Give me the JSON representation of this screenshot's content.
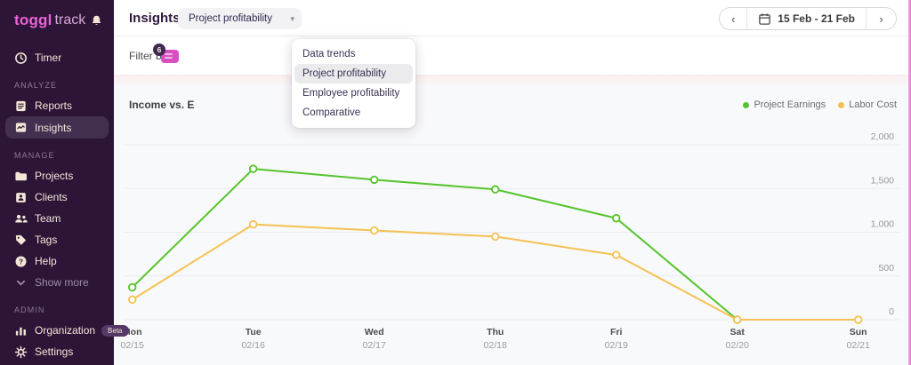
{
  "colors": {
    "sidebar_bg": "#2c1537",
    "selected_item_bg": "#433051",
    "brand_pink": "#e964d3",
    "cream": "#f3e6d6",
    "earnings_green": "#56c42c",
    "labor_yellow": "#f5c152",
    "grid_line": "#e9ebee",
    "edge_pink": "#e678d3"
  },
  "sidebar": {
    "logo": {
      "bold": "toggl",
      "light": "track"
    },
    "sections": [
      {
        "header": "",
        "items": [
          {
            "label": "Timer"
          }
        ]
      },
      {
        "header": "ANALYZE",
        "items": [
          {
            "label": "Reports"
          },
          {
            "label": "Insights"
          }
        ]
      },
      {
        "header": "MANAGE",
        "items": [
          {
            "label": "Projects"
          },
          {
            "label": "Clients"
          },
          {
            "label": "Team"
          },
          {
            "label": "Tags"
          },
          {
            "label": "Help"
          },
          {
            "label": "Show more"
          }
        ]
      },
      {
        "header": "ADMIN",
        "items": [
          {
            "label": "Organization",
            "badge": "Beta"
          },
          {
            "label": "Settings"
          }
        ]
      }
    ]
  },
  "topbar": {
    "title": "Insights",
    "view_selector": {
      "value": "Project profitability"
    },
    "date_range": {
      "prev": "‹",
      "label": "15 Feb - 21 Feb",
      "next": "›"
    }
  },
  "filter": {
    "label": "Filter by:",
    "badge_count": "6"
  },
  "dropdown": {
    "items": [
      "Data trends",
      "Project profitability",
      "Employee profitability",
      "Comparative"
    ],
    "selected_index": 1
  },
  "chart_data": {
    "type": "line",
    "title": "Income vs. E",
    "categories": [
      {
        "day": "Mon",
        "date": "02/15"
      },
      {
        "day": "Tue",
        "date": "02/16"
      },
      {
        "day": "Wed",
        "date": "02/17"
      },
      {
        "day": "Thu",
        "date": "02/18"
      },
      {
        "day": "Fri",
        "date": "02/19"
      },
      {
        "day": "Sat",
        "date": "02/20"
      },
      {
        "day": "Sun",
        "date": "02/21"
      }
    ],
    "series": [
      {
        "name": "Project Earnings",
        "color": "#56c42c",
        "values": [
          370,
          1725,
          1600,
          1490,
          1160,
          0,
          null
        ]
      },
      {
        "name": "Labor Cost",
        "color": "#f5c152",
        "values": [
          230,
          1090,
          1020,
          950,
          740,
          0,
          0
        ]
      }
    ],
    "ylim": [
      0,
      2000
    ],
    "yticks": [
      0,
      500,
      1000,
      1500,
      2000
    ],
    "grid": true,
    "legend_position": "top-right"
  }
}
